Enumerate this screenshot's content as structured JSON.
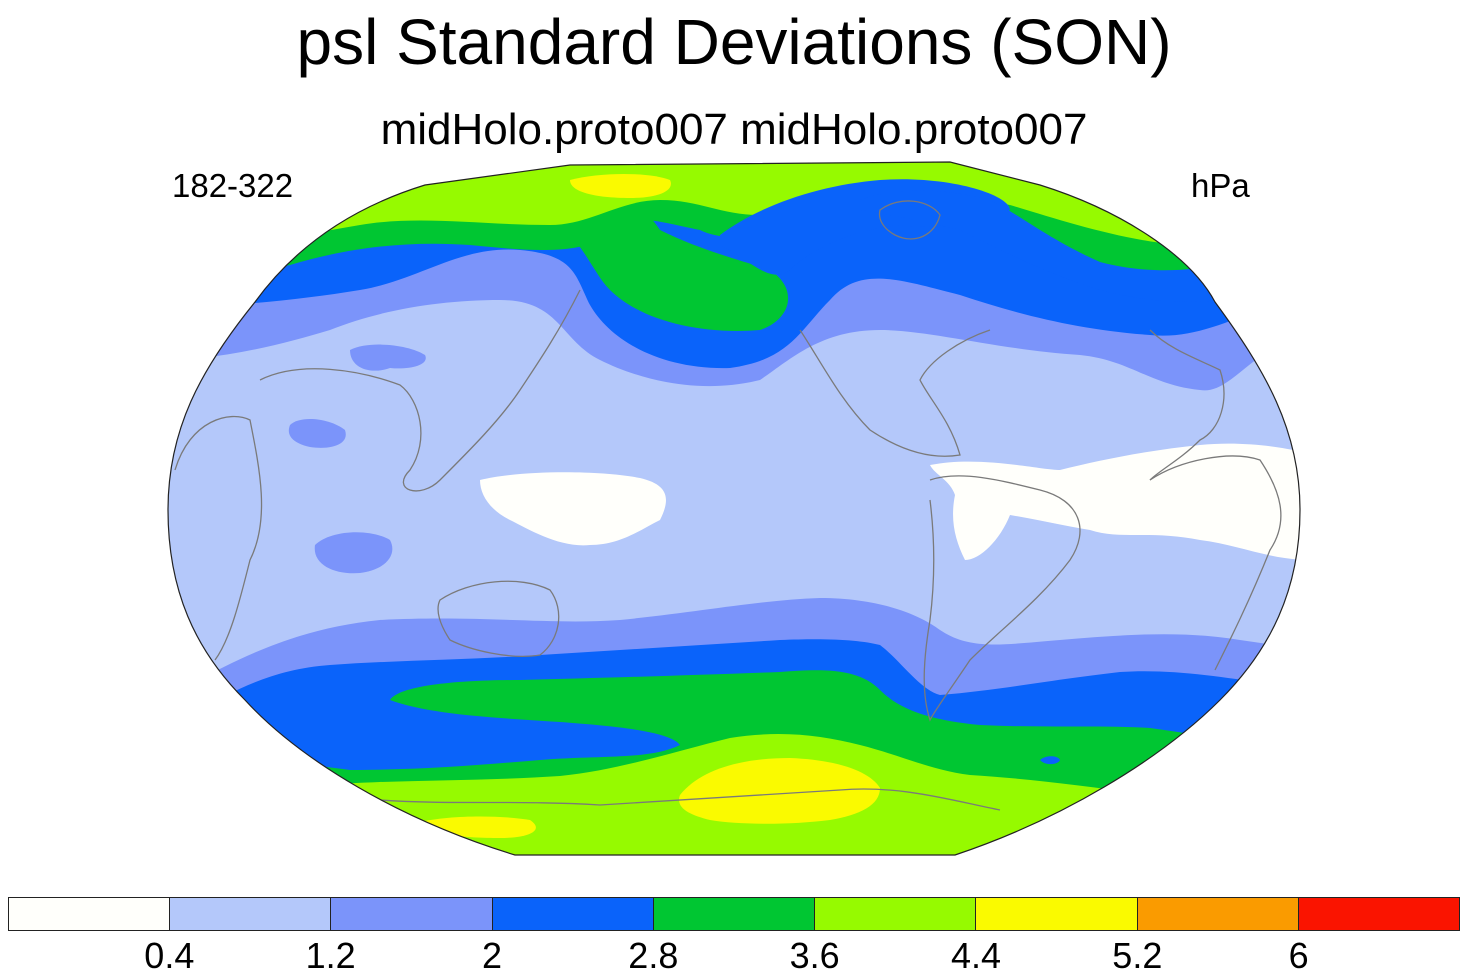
{
  "title": "psl Standard Deviations (SON)",
  "subtitle": "midHolo.proto007  midHolo.proto007",
  "left_label": "182-322",
  "right_label": "hPa",
  "colorbar": {
    "colors": [
      "#fffffb",
      "#b4c8fa",
      "#7b94fa",
      "#0a63fa",
      "#00c632",
      "#96fa00",
      "#fafa00",
      "#fa9b00",
      "#fa1400"
    ],
    "labels": [
      "0.4",
      "1.2",
      "2",
      "2.8",
      "3.6",
      "4.4",
      "5.2",
      "6"
    ]
  },
  "map": {
    "projection": "winkel-tripel-like ellipse",
    "lon_center": "180",
    "regions": [
      {
        "name": "north-polar-band",
        "level": 4.4
      },
      {
        "name": "north-pacific-storm-track",
        "level": 2.8
      },
      {
        "name": "north-atlantic-storm-track",
        "level": 2.8
      },
      {
        "name": "tropical-low-variability",
        "level": 0.4
      },
      {
        "name": "southern-ocean-storm-track",
        "level": 2.8
      },
      {
        "name": "southern-ocean-core",
        "level": 3.6
      },
      {
        "name": "antarctic-coast-max",
        "level": 5.2
      }
    ]
  }
}
